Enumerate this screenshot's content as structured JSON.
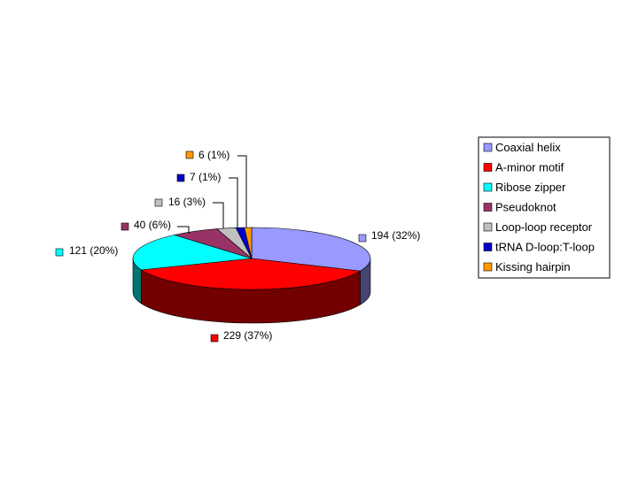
{
  "chart_data": {
    "type": "pie",
    "style": "3d-exploded-none",
    "legend_position": "right",
    "slices": [
      {
        "name": "Coaxial helix",
        "value": 194,
        "percent_label": "194 (32%)",
        "color": "#9999ff"
      },
      {
        "name": "A-minor motif",
        "value": 229,
        "percent_label": "229 (37%)",
        "color": "#ff0000"
      },
      {
        "name": "Ribose zipper",
        "value": 121,
        "percent_label": "121 (20%)",
        "color": "#00ffff"
      },
      {
        "name": "Pseudoknot",
        "value": 40,
        "percent_label": "40 (6%)",
        "color": "#993366"
      },
      {
        "name": "Loop-loop receptor",
        "value": 16,
        "percent_label": "16 (3%)",
        "color": "#c0c0c0"
      },
      {
        "name": "tRNA D-loop:T-loop",
        "value": 7,
        "percent_label": "7 (1%)",
        "color": "#0000cc"
      },
      {
        "name": "Kissing hairpin",
        "value": 6,
        "percent_label": "6 (1%)",
        "color": "#ff9900"
      }
    ]
  }
}
